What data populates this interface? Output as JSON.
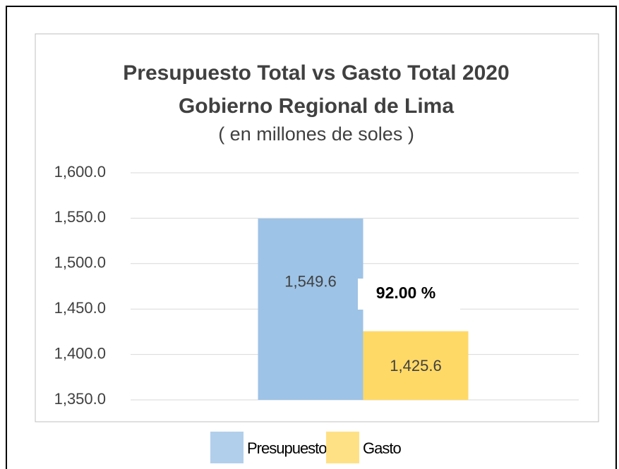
{
  "chart_data": {
    "type": "bar",
    "title": [
      "Presupuesto Total vs Gasto Total 2020",
      "Gobierno Regional de Lima"
    ],
    "subtitle": "( en millones de soles )",
    "categories": [
      null
    ],
    "series": [
      {
        "name": "Presupuesto",
        "color": "#9dc3e6",
        "values": [
          1549.6
        ],
        "value_labels": [
          "1,549.6"
        ]
      },
      {
        "name": "Gasto",
        "color": "#ffd966",
        "values": [
          1425.6
        ],
        "value_labels": [
          "1,425.6"
        ]
      }
    ],
    "annotation": "92.00 %",
    "ylim": [
      1350,
      1600
    ],
    "yticks": [
      {
        "value": 1350,
        "label": "1,350.0"
      },
      {
        "value": 1400,
        "label": "1,400.0"
      },
      {
        "value": 1450,
        "label": "1,450.0"
      },
      {
        "value": 1500,
        "label": "1,500.0"
      },
      {
        "value": 1550,
        "label": "1,550.0"
      },
      {
        "value": 1600,
        "label": "1,600.0"
      }
    ],
    "grid": true,
    "legend": "bottom"
  }
}
